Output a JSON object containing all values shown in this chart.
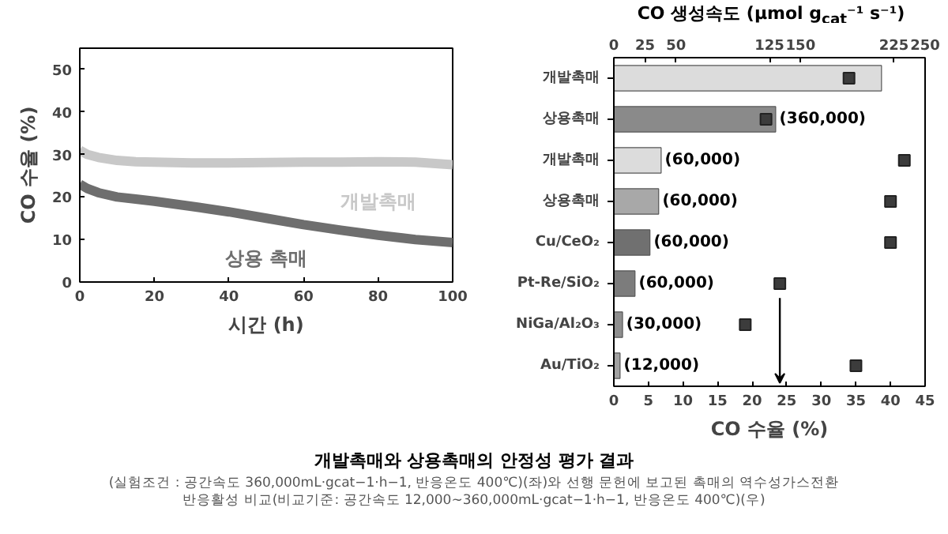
{
  "chart_data": [
    {
      "type": "line",
      "title": "개발촉매와 상용촉매의 안정성 평가 결과",
      "annotations": [
        "(실험조건 : 공간속도 360,000mL·gcat−1·h−1, 반응온도 400℃)(좌)와 선행 문헌에 보고된 촉매의 역수성가스전환",
        "반응활성 비교(비교기준: 공간속도 12,000∼360,000mL·gcat−1·h−1, 반응온도 400℃)(우)"
      ],
      "xlabel": "시간 (h)",
      "ylabel": "CO 수율 (%)",
      "xlim": [
        0,
        100
      ],
      "xticks": [
        0,
        20,
        40,
        60,
        80,
        100
      ],
      "ylim": [
        0,
        55
      ],
      "yticks": [
        0,
        10,
        20,
        30,
        40,
        50
      ],
      "series": [
        {
          "name": "개발촉매",
          "color": "#c8c8c8",
          "x": [
            0,
            2,
            5,
            10,
            15,
            20,
            30,
            40,
            50,
            60,
            70,
            80,
            90,
            100
          ],
          "values": [
            31,
            30,
            29.3,
            28.6,
            28.3,
            28.2,
            28,
            28,
            28.1,
            28.2,
            28.2,
            28.3,
            28.2,
            27.6
          ]
        },
        {
          "name": "상용 촉매",
          "color": "#6e6e6e",
          "x": [
            0,
            2,
            5,
            10,
            15,
            20,
            30,
            40,
            50,
            60,
            70,
            80,
            90,
            100
          ],
          "values": [
            23,
            22,
            21,
            20,
            19.5,
            19,
            17.8,
            16.5,
            15,
            13.5,
            12.2,
            11,
            10,
            9.3
          ]
        }
      ]
    },
    {
      "type": "bar",
      "orientation": "horizontal",
      "categories": [
        "개발촉매",
        "상용촉매",
        "개발촉매",
        "상용촉매",
        "Cu/CeO₂",
        "Pt-Re/SiO₂",
        "NiGa/Al₂O₃",
        "Au/TiO₂"
      ],
      "x2label": "CO 생성속도 (μmol g$_{cat}$⁻¹ s⁻¹)",
      "x2lim": [
        0,
        250
      ],
      "x2ticks": [
        0,
        25,
        50,
        125,
        150,
        225,
        250
      ],
      "xlabel": "CO 수율 (%)",
      "xlim": [
        0,
        45
      ],
      "xticks": [
        0,
        5,
        10,
        15,
        20,
        25,
        30,
        35,
        40,
        45
      ],
      "marker": "square",
      "annotations": [
        "(360,000)",
        "(60,000)",
        "(60,000)",
        "(60,000)",
        "(60,000)",
        "(30,000)",
        "(12,000)"
      ],
      "series": [
        {
          "type": "bar",
          "axis": "x2",
          "values": [
            215,
            130,
            38,
            36,
            29,
            17,
            7,
            5
          ],
          "colors": [
            "#dcdcdc",
            "#8a8a8a",
            "#dcdcdc",
            "#a8a8a8",
            "#707070",
            "#7c7c7c",
            "#8e8e8e",
            "#a2a2a2"
          ]
        },
        {
          "type": "scatter",
          "color": "#3c3c3c",
          "values": [
            34,
            22,
            42,
            40,
            40,
            24,
            19,
            35
          ]
        }
      ]
    }
  ]
}
